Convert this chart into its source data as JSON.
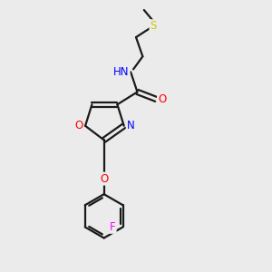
{
  "background_color": "#ebebeb",
  "bond_color": "#1a1a1a",
  "bond_width": 1.6,
  "atom_colors": {
    "O": "#ff0000",
    "N": "#0000ff",
    "S": "#cccc00",
    "F": "#ff00ff",
    "H": "#708090",
    "C": "#1a1a1a"
  },
  "figsize": [
    3.0,
    3.0
  ],
  "dpi": 100
}
